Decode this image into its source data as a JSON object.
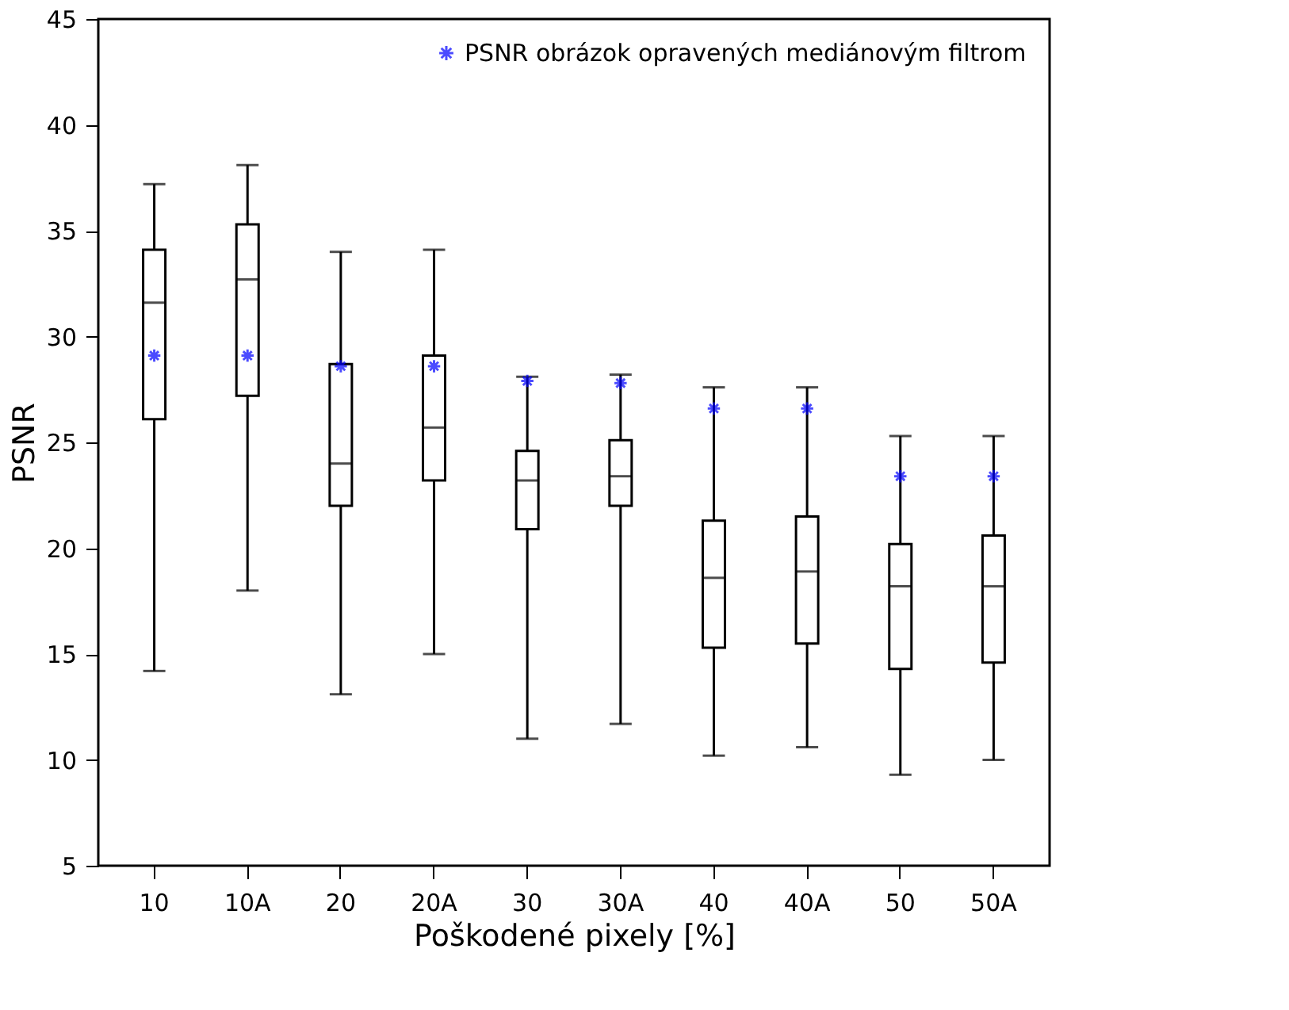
{
  "chart_data": {
    "type": "box",
    "xlabel": "Poškodené pixely [%]",
    "ylabel": "PSNR",
    "categories": [
      "10",
      "10A",
      "20",
      "20A",
      "30",
      "30A",
      "40",
      "40A",
      "50",
      "50A"
    ],
    "boxes": [
      {
        "low": 14.2,
        "q1": 26.1,
        "median": 31.6,
        "q3": 34.1,
        "high": 37.2
      },
      {
        "low": 18.0,
        "q1": 27.2,
        "median": 32.7,
        "q3": 35.3,
        "high": 38.1
      },
      {
        "low": 13.1,
        "q1": 22.0,
        "median": 24.0,
        "q3": 28.7,
        "high": 34.0
      },
      {
        "low": 15.0,
        "q1": 23.2,
        "median": 25.7,
        "q3": 29.1,
        "high": 34.1
      },
      {
        "low": 11.0,
        "q1": 20.9,
        "median": 23.2,
        "q3": 24.6,
        "high": 28.1
      },
      {
        "low": 11.7,
        "q1": 22.0,
        "median": 23.4,
        "q3": 25.1,
        "high": 28.2
      },
      {
        "low": 10.2,
        "q1": 15.3,
        "median": 18.6,
        "q3": 21.3,
        "high": 27.6
      },
      {
        "low": 10.6,
        "q1": 15.5,
        "median": 18.9,
        "q3": 21.5,
        "high": 27.6
      },
      {
        "low": 9.3,
        "q1": 14.3,
        "median": 18.2,
        "q3": 20.2,
        "high": 25.3
      },
      {
        "low": 10.0,
        "q1": 14.6,
        "median": 18.2,
        "q3": 20.6,
        "high": 25.3
      }
    ],
    "series": [
      {
        "name": "PSNR obrázok opravených mediánovým filtrom",
        "type": "scatter",
        "color": "#0000ff",
        "marker": "cross",
        "values": [
          29.1,
          29.1,
          28.6,
          28.6,
          27.9,
          27.8,
          26.6,
          26.6,
          23.4,
          23.4
        ]
      }
    ],
    "ylim": [
      5,
      45
    ],
    "yticks": [
      5,
      10,
      15,
      20,
      25,
      30,
      35,
      40,
      45
    ],
    "grid": false,
    "legend": "top right"
  }
}
